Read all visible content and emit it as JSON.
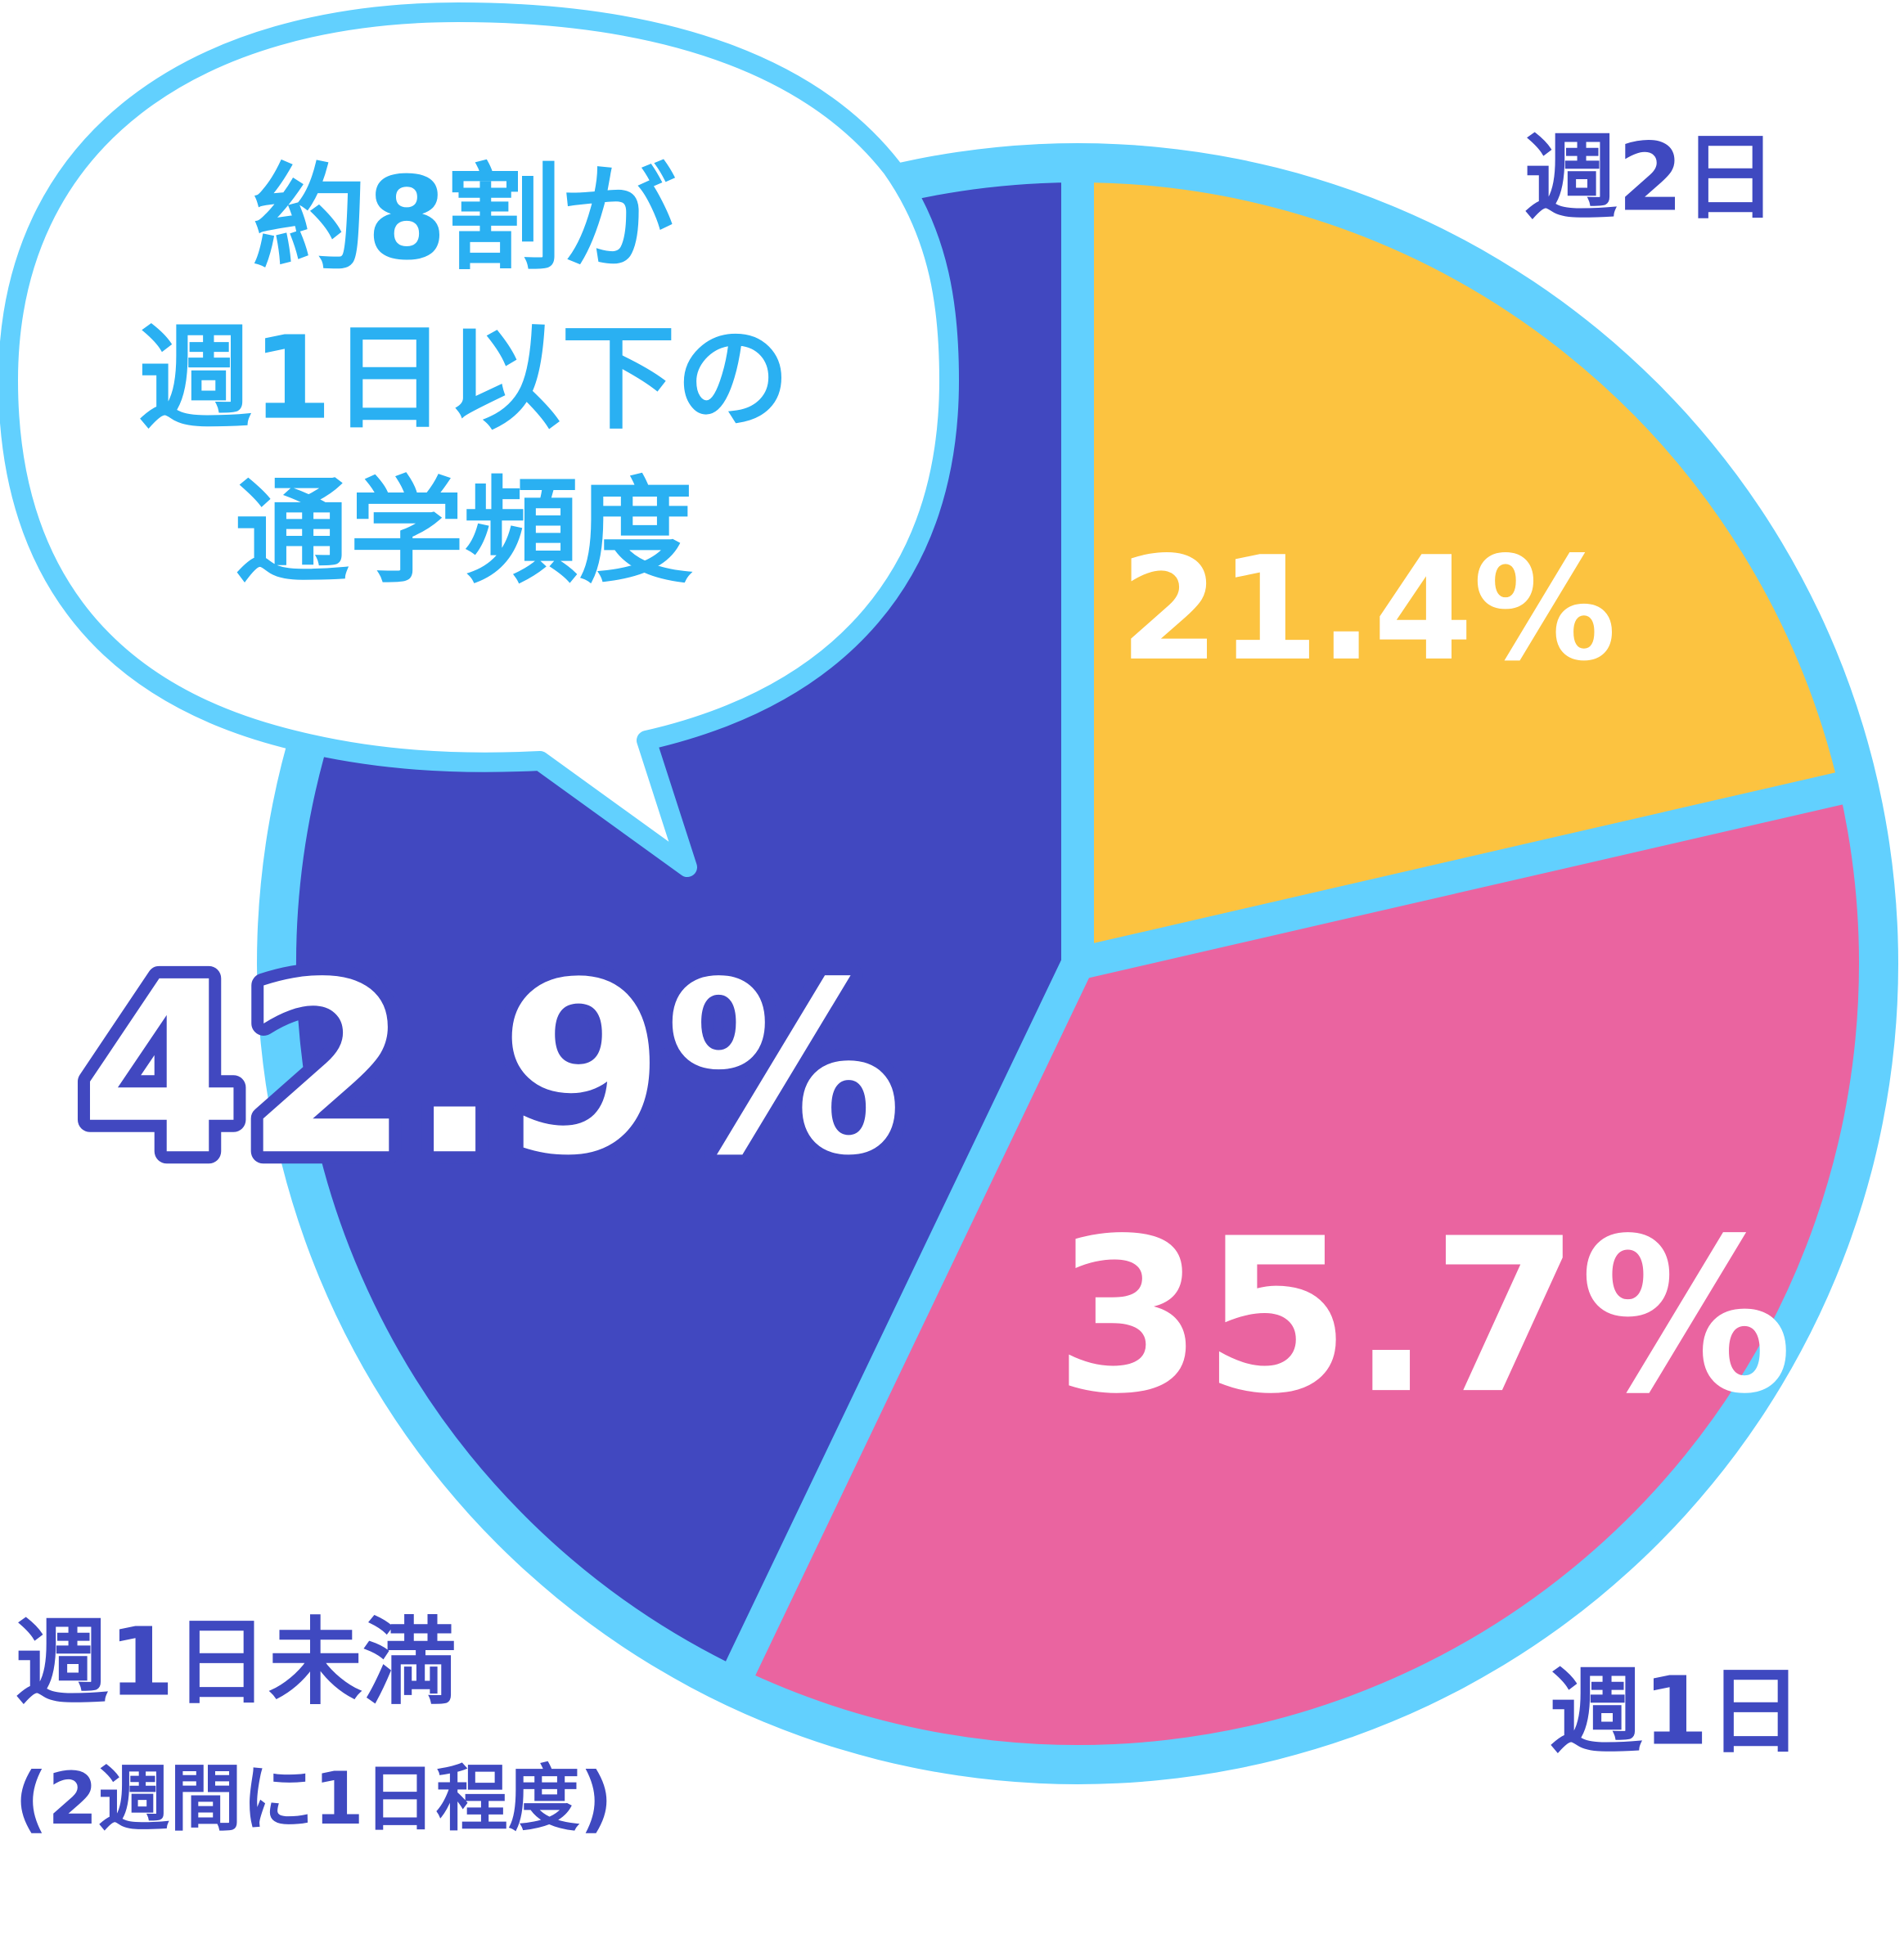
{
  "chart_data": {
    "type": "pie",
    "categories": [
      "週2日",
      "週1日",
      "週1日未満"
    ],
    "values": [
      21.4,
      35.7,
      42.9
    ],
    "value_labels": [
      "21.4%",
      "35.7%",
      "42.9%"
    ],
    "colors": [
      "#fcc340",
      "#ea64a0",
      "#4148c0"
    ],
    "annotation": "(2週間に1日程度)",
    "callout": [
      "約8割が",
      "週1日以下の",
      "通学頻度"
    ]
  }
}
